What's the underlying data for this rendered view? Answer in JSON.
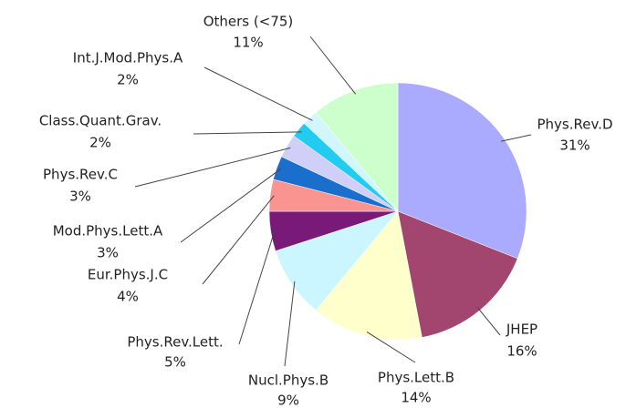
{
  "chart_data": {
    "type": "pie",
    "categories": [
      "Phys.Rev.D",
      "JHEP",
      "Phys.Lett.B",
      "Nucl.Phys.B",
      "Phys.Rev.Lett.",
      "Eur.Phys.J.C",
      "Mod.Phys.Lett.A",
      "Phys.Rev.C",
      "Class.Quant.Grav.",
      "Int.J.Mod.Phys.A",
      "Others (<75)"
    ],
    "values": [
      31,
      16,
      14,
      9,
      5,
      4,
      3,
      3,
      2,
      2,
      11
    ],
    "value_labels": [
      "31%",
      "16%",
      "14%",
      "9%",
      "5%",
      "4%",
      "3%",
      "3%",
      "2%",
      "2%",
      "11%"
    ],
    "colors": [
      "#aaaaff",
      "#a3466f",
      "#ffffcc",
      "#ccf6ff",
      "#7a1a78",
      "#fa9490",
      "#1a6fcc",
      "#cfcff8",
      "#22ccf0",
      "#d2f6fc",
      "#ccffcc"
    ]
  }
}
